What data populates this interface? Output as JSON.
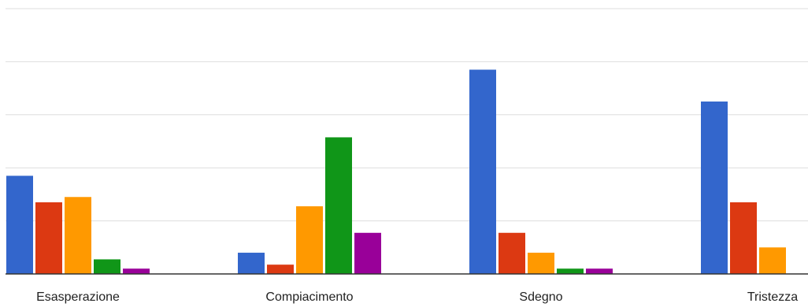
{
  "chart_data": {
    "type": "bar",
    "categories": [
      "Esasperazione",
      "Compiacimento",
      "Sdegno",
      "Tristezza"
    ],
    "series": [
      {
        "color": "#3366cc",
        "values": [
          3.7,
          0.8,
          7.7,
          6.5
        ]
      },
      {
        "color": "#dc3912",
        "values": [
          2.7,
          0.35,
          1.55,
          2.7
        ]
      },
      {
        "color": "#ff9900",
        "values": [
          2.9,
          2.55,
          0.8,
          1.0
        ]
      },
      {
        "color": "#109618",
        "values": [
          0.55,
          5.15,
          0.2,
          0
        ]
      },
      {
        "color": "#990099",
        "values": [
          0.2,
          1.55,
          0.2,
          0
        ]
      }
    ],
    "ylim": [
      0,
      10
    ],
    "grid": true,
    "legend": "none"
  }
}
